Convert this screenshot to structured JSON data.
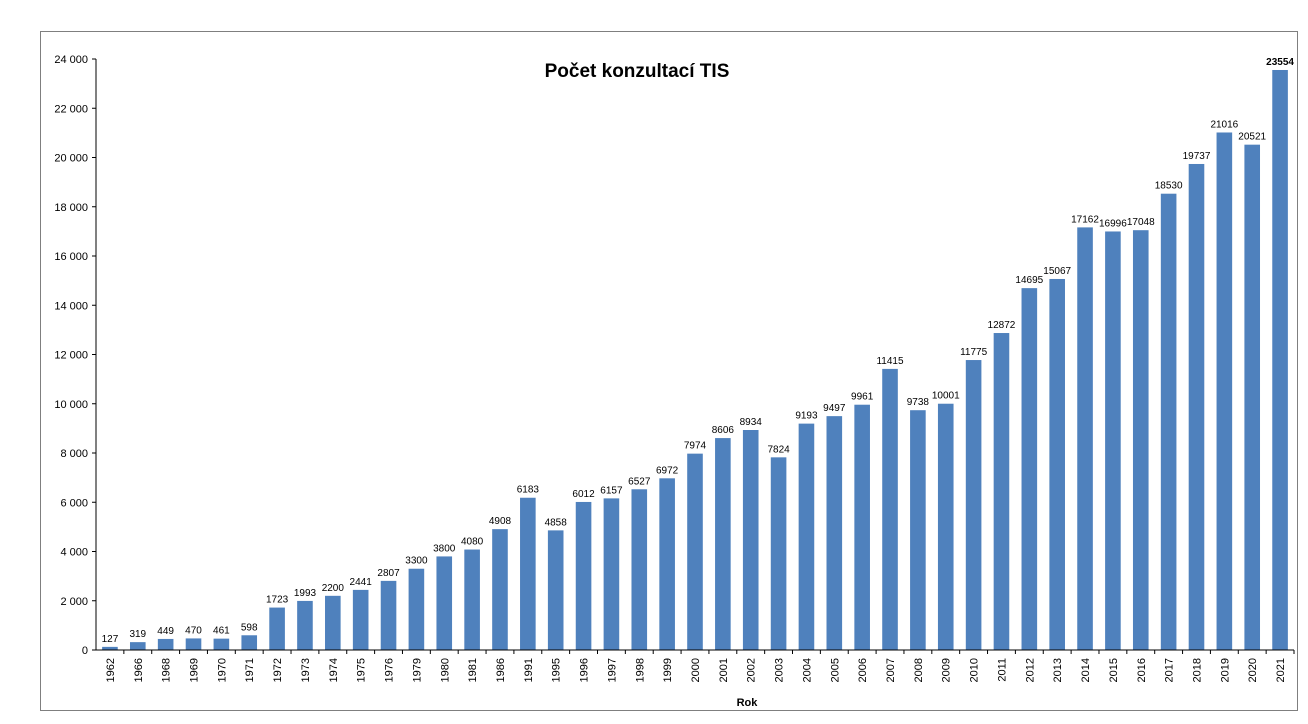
{
  "chart_data": {
    "type": "bar",
    "title": "Počet konzultací TIS",
    "xlabel": "Rok",
    "ylabel": "",
    "ylim": [
      0,
      24000
    ],
    "yticks": [
      0,
      2000,
      4000,
      6000,
      8000,
      10000,
      12000,
      14000,
      16000,
      18000,
      20000,
      22000,
      24000
    ],
    "ytick_labels": [
      "0",
      "2 000",
      "4 000",
      "6 000",
      "8 000",
      "10 000",
      "12 000",
      "14 000",
      "16 000",
      "18 000",
      "20 000",
      "22 000",
      "24 000"
    ],
    "grid": false,
    "legend": "none",
    "bar_color": "#4f81bd",
    "highlight_last_label_bold": true,
    "categories": [
      "1962",
      "1966",
      "1968",
      "1969",
      "1970",
      "1971",
      "1972",
      "1973",
      "1974",
      "1975",
      "1976",
      "1979",
      "1980",
      "1981",
      "1986",
      "1991",
      "1995",
      "1996",
      "1997",
      "1998",
      "1999",
      "2000",
      "2001",
      "2002",
      "2003",
      "2004",
      "2005",
      "2006",
      "2007",
      "2008",
      "2009",
      "2010",
      "2011",
      "2012",
      "2013",
      "2014",
      "2015",
      "2016",
      "2017",
      "2018",
      "2019",
      "2020",
      "2021"
    ],
    "values": [
      127,
      319,
      449,
      470,
      461,
      598,
      1723,
      1993,
      2200,
      2441,
      2807,
      3300,
      3800,
      4080,
      4908,
      6183,
      4858,
      6012,
      6157,
      6527,
      6972,
      7974,
      8606,
      8934,
      7824,
      9193,
      9497,
      9961,
      11415,
      9738,
      10001,
      11775,
      12872,
      14695,
      15067,
      17162,
      16996,
      17048,
      18530,
      19737,
      21016,
      20521,
      23554
    ]
  }
}
